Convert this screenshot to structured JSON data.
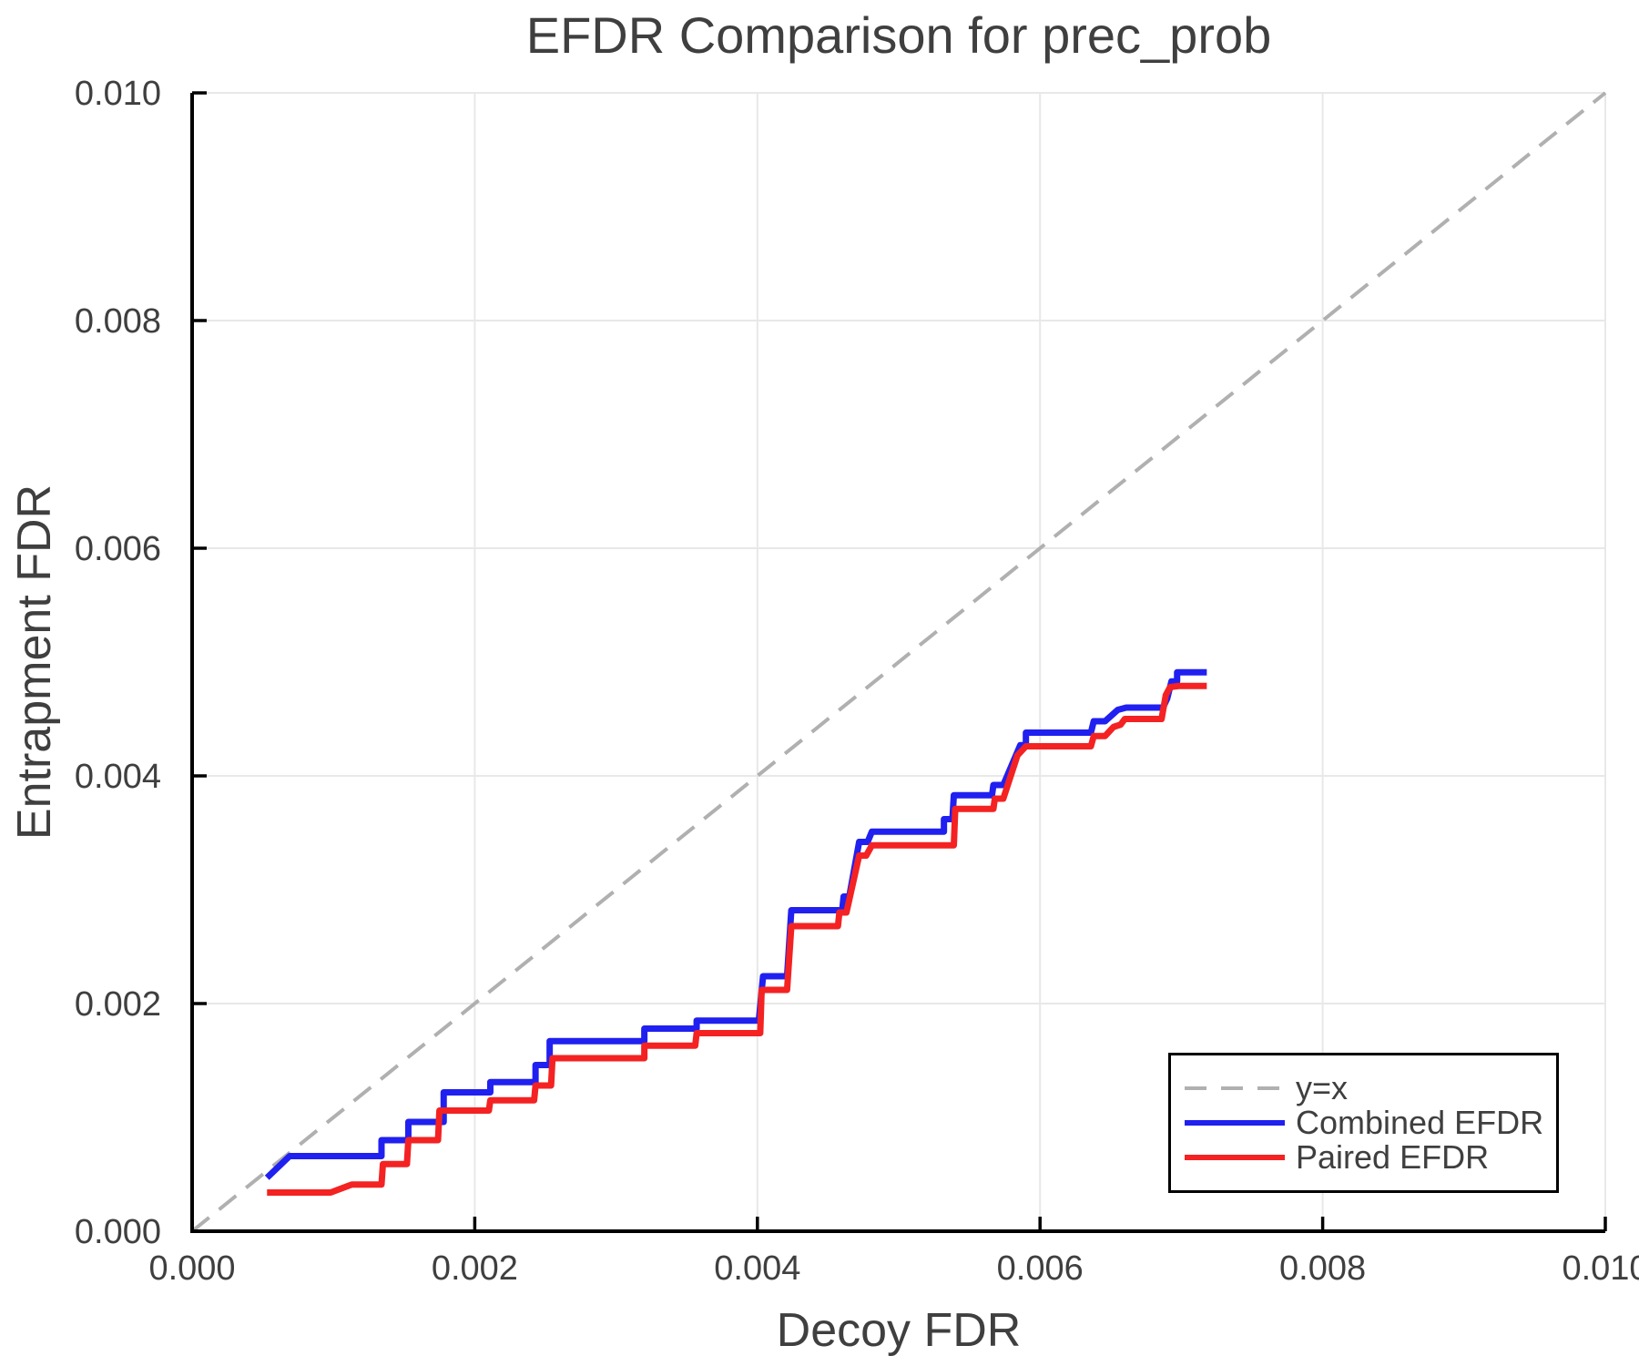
{
  "chart_data": {
    "type": "line",
    "title": "EFDR Comparison for prec_prob",
    "xlabel": "Decoy FDR",
    "ylabel": "Entrapment FDR",
    "xlim": [
      0.0,
      0.01
    ],
    "ylim": [
      0.0,
      0.01
    ],
    "xticks": [
      0.0,
      0.002,
      0.004,
      0.006,
      0.008,
      0.01
    ],
    "yticks": [
      0.0,
      0.002,
      0.004,
      0.006,
      0.008,
      0.01
    ],
    "xtick_labels": [
      "0.000",
      "0.002",
      "0.004",
      "0.006",
      "0.008",
      "0.010"
    ],
    "ytick_labels": [
      "0.000",
      "0.002",
      "0.004",
      "0.006",
      "0.008",
      "0.010"
    ],
    "grid": true,
    "legend_position": "lower right",
    "series": [
      {
        "name": "y=x",
        "color": "#b0b0b0",
        "style": "dashed",
        "width": 4,
        "points": [
          [
            0.0,
            0.0
          ],
          [
            0.01,
            0.01
          ]
        ]
      },
      {
        "name": "Combined EFDR",
        "color": "#2020f0",
        "style": "solid",
        "width": 7,
        "points": [
          [
            0.00053,
            0.00047
          ],
          [
            0.00069,
            0.00066
          ],
          [
            0.00134,
            0.00066
          ],
          [
            0.00134,
            0.0008
          ],
          [
            0.00153,
            0.0008
          ],
          [
            0.00153,
            0.00096
          ],
          [
            0.00178,
            0.00096
          ],
          [
            0.00178,
            0.00122
          ],
          [
            0.00211,
            0.00122
          ],
          [
            0.00211,
            0.00131
          ],
          [
            0.00243,
            0.00131
          ],
          [
            0.00243,
            0.00146
          ],
          [
            0.00253,
            0.00146
          ],
          [
            0.00253,
            0.00167
          ],
          [
            0.0032,
            0.00167
          ],
          [
            0.0032,
            0.00178
          ],
          [
            0.00357,
            0.00178
          ],
          [
            0.00357,
            0.00185
          ],
          [
            0.00401,
            0.00185
          ],
          [
            0.00404,
            0.00224
          ],
          [
            0.00421,
            0.00224
          ],
          [
            0.00424,
            0.00282
          ],
          [
            0.0046,
            0.00282
          ],
          [
            0.00461,
            0.00294
          ],
          [
            0.00465,
            0.00294
          ],
          [
            0.00472,
            0.00342
          ],
          [
            0.00478,
            0.00342
          ],
          [
            0.00481,
            0.00351
          ],
          [
            0.00532,
            0.00351
          ],
          [
            0.00532,
            0.00362
          ],
          [
            0.00538,
            0.00362
          ],
          [
            0.00539,
            0.00383
          ],
          [
            0.00566,
            0.00383
          ],
          [
            0.00567,
            0.00392
          ],
          [
            0.00574,
            0.00392
          ],
          [
            0.00586,
            0.00427
          ],
          [
            0.0059,
            0.00427
          ],
          [
            0.0059,
            0.00438
          ],
          [
            0.00636,
            0.00438
          ],
          [
            0.00638,
            0.00448
          ],
          [
            0.00646,
            0.00448
          ],
          [
            0.00655,
            0.00458
          ],
          [
            0.00661,
            0.0046
          ],
          [
            0.00687,
            0.0046
          ],
          [
            0.0069,
            0.00468
          ],
          [
            0.00693,
            0.00483
          ],
          [
            0.00697,
            0.00483
          ],
          [
            0.00697,
            0.00491
          ],
          [
            0.00718,
            0.00491
          ]
        ]
      },
      {
        "name": "Paired EFDR",
        "color": "#f42222",
        "style": "solid",
        "width": 7,
        "points": [
          [
            0.00053,
            0.00034
          ],
          [
            0.00098,
            0.00034
          ],
          [
            0.00113,
            0.00041
          ],
          [
            0.00134,
            0.00041
          ],
          [
            0.00135,
            0.00059
          ],
          [
            0.00152,
            0.00059
          ],
          [
            0.00153,
            0.0008
          ],
          [
            0.00174,
            0.0008
          ],
          [
            0.00175,
            0.00106
          ],
          [
            0.0021,
            0.00106
          ],
          [
            0.00211,
            0.00115
          ],
          [
            0.00242,
            0.00115
          ],
          [
            0.00243,
            0.00128
          ],
          [
            0.00254,
            0.00128
          ],
          [
            0.00255,
            0.00152
          ],
          [
            0.0032,
            0.00152
          ],
          [
            0.0032,
            0.00163
          ],
          [
            0.00356,
            0.00163
          ],
          [
            0.00357,
            0.00174
          ],
          [
            0.00402,
            0.00174
          ],
          [
            0.00403,
            0.00212
          ],
          [
            0.00421,
            0.00212
          ],
          [
            0.00424,
            0.00268
          ],
          [
            0.00457,
            0.00268
          ],
          [
            0.00458,
            0.0028
          ],
          [
            0.00463,
            0.0028
          ],
          [
            0.00472,
            0.0033
          ],
          [
            0.00477,
            0.0033
          ],
          [
            0.00481,
            0.00339
          ],
          [
            0.00539,
            0.00339
          ],
          [
            0.0054,
            0.00371
          ],
          [
            0.00567,
            0.00371
          ],
          [
            0.00568,
            0.0038
          ],
          [
            0.00574,
            0.0038
          ],
          [
            0.00584,
            0.00418
          ],
          [
            0.0059,
            0.00426
          ],
          [
            0.00636,
            0.00426
          ],
          [
            0.00638,
            0.00435
          ],
          [
            0.00646,
            0.00435
          ],
          [
            0.00652,
            0.00443
          ],
          [
            0.00657,
            0.00445
          ],
          [
            0.0066,
            0.0045
          ],
          [
            0.00686,
            0.0045
          ],
          [
            0.00689,
            0.00471
          ],
          [
            0.00692,
            0.00478
          ],
          [
            0.00698,
            0.00479
          ],
          [
            0.00718,
            0.00479
          ]
        ]
      }
    ]
  },
  "colors": {
    "grid": "#e8e8e8",
    "spine": "#000000",
    "text": "#3f3f3f",
    "background": "#ffffff"
  }
}
